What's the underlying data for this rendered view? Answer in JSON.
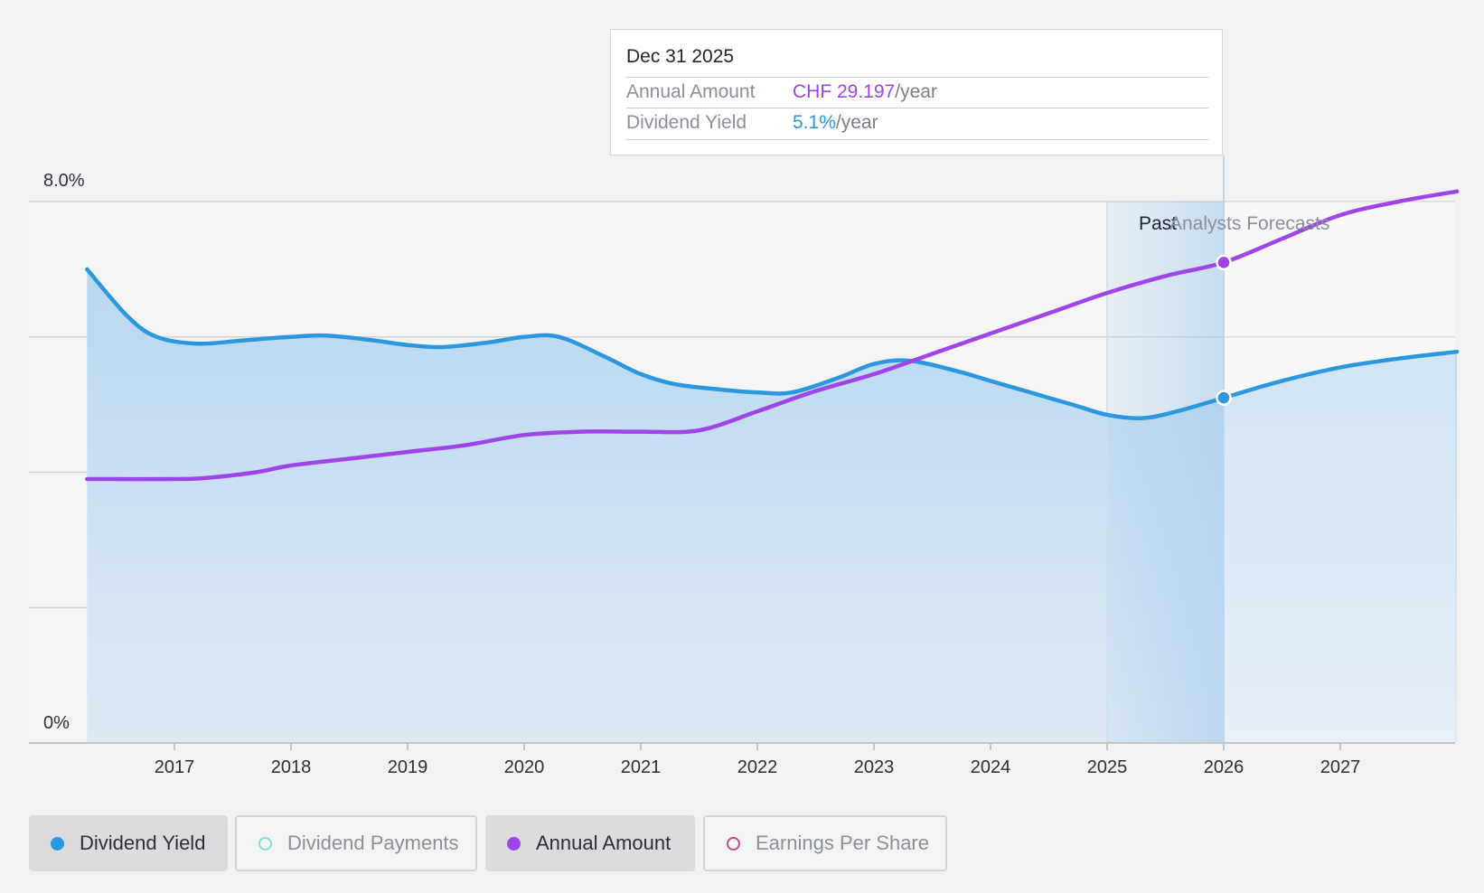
{
  "chart_data": {
    "type": "line",
    "y_axis": {
      "label_top": "8.0%",
      "label_bottom": "0%",
      "ylim": [
        0,
        8.0
      ]
    },
    "x_ticks": [
      "2017",
      "2018",
      "2019",
      "2020",
      "2021",
      "2022",
      "2023",
      "2024",
      "2025",
      "2026",
      "2027"
    ],
    "regions": {
      "past_label": "Past",
      "forecast_label": "Analysts Forecasts"
    },
    "series": [
      {
        "name": "Dividend Yield",
        "color": "#2b97de",
        "filled": true,
        "points": [
          [
            2016.25,
            7.0
          ],
          [
            2016.6,
            6.3
          ],
          [
            2016.85,
            6.0
          ],
          [
            2017.2,
            5.9
          ],
          [
            2017.6,
            5.95
          ],
          [
            2018.0,
            6.0
          ],
          [
            2018.3,
            6.02
          ],
          [
            2018.7,
            5.95
          ],
          [
            2019.0,
            5.88
          ],
          [
            2019.3,
            5.85
          ],
          [
            2019.7,
            5.92
          ],
          [
            2020.0,
            6.0
          ],
          [
            2020.3,
            6.0
          ],
          [
            2020.7,
            5.7
          ],
          [
            2021.0,
            5.45
          ],
          [
            2021.3,
            5.3
          ],
          [
            2021.7,
            5.22
          ],
          [
            2022.0,
            5.18
          ],
          [
            2022.3,
            5.18
          ],
          [
            2022.7,
            5.4
          ],
          [
            2023.0,
            5.6
          ],
          [
            2023.3,
            5.65
          ],
          [
            2023.7,
            5.5
          ],
          [
            2024.0,
            5.35
          ],
          [
            2024.3,
            5.2
          ],
          [
            2024.7,
            5.0
          ],
          [
            2025.0,
            4.85
          ],
          [
            2025.3,
            4.8
          ],
          [
            2025.6,
            4.9
          ],
          [
            2026.0,
            5.1
          ],
          [
            2026.5,
            5.35
          ],
          [
            2027.0,
            5.55
          ],
          [
            2027.5,
            5.68
          ],
          [
            2028.0,
            5.78
          ]
        ]
      },
      {
        "name": "Annual Amount",
        "color": "#a044ea",
        "filled": false,
        "points": [
          [
            2016.25,
            3.9
          ],
          [
            2017.0,
            3.9
          ],
          [
            2017.3,
            3.92
          ],
          [
            2017.7,
            4.0
          ],
          [
            2018.0,
            4.1
          ],
          [
            2018.5,
            4.2
          ],
          [
            2019.0,
            4.3
          ],
          [
            2019.5,
            4.4
          ],
          [
            2020.0,
            4.55
          ],
          [
            2020.5,
            4.6
          ],
          [
            2021.0,
            4.6
          ],
          [
            2021.5,
            4.62
          ],
          [
            2022.0,
            4.9
          ],
          [
            2022.5,
            5.2
          ],
          [
            2023.0,
            5.45
          ],
          [
            2023.5,
            5.75
          ],
          [
            2024.0,
            6.05
          ],
          [
            2024.5,
            6.35
          ],
          [
            2025.0,
            6.65
          ],
          [
            2025.5,
            6.9
          ],
          [
            2026.0,
            7.1
          ],
          [
            2026.5,
            7.45
          ],
          [
            2027.0,
            7.8
          ],
          [
            2027.5,
            8.0
          ],
          [
            2028.0,
            8.15
          ]
        ]
      }
    ],
    "highlight_date": 2026.0
  },
  "tooltip": {
    "date": "Dec 31 2025",
    "rows": [
      {
        "label": "Annual Amount",
        "value": "CHF 29.197",
        "suffix": "/year",
        "color": "#a044ea"
      },
      {
        "label": "Dividend Yield",
        "value": "5.1%",
        "suffix": "/year",
        "color": "#2b97de"
      }
    ]
  },
  "legend": [
    {
      "label": "Dividend Yield",
      "color": "#2b97de",
      "active": true,
      "hollow": false
    },
    {
      "label": "Dividend Payments",
      "color": "#7ee0d6",
      "active": false,
      "hollow": true
    },
    {
      "label": "Annual Amount",
      "color": "#a044ea",
      "active": true,
      "hollow": false
    },
    {
      "label": "Earnings Per Share",
      "color": "#c24a86",
      "active": false,
      "hollow": true
    }
  ]
}
